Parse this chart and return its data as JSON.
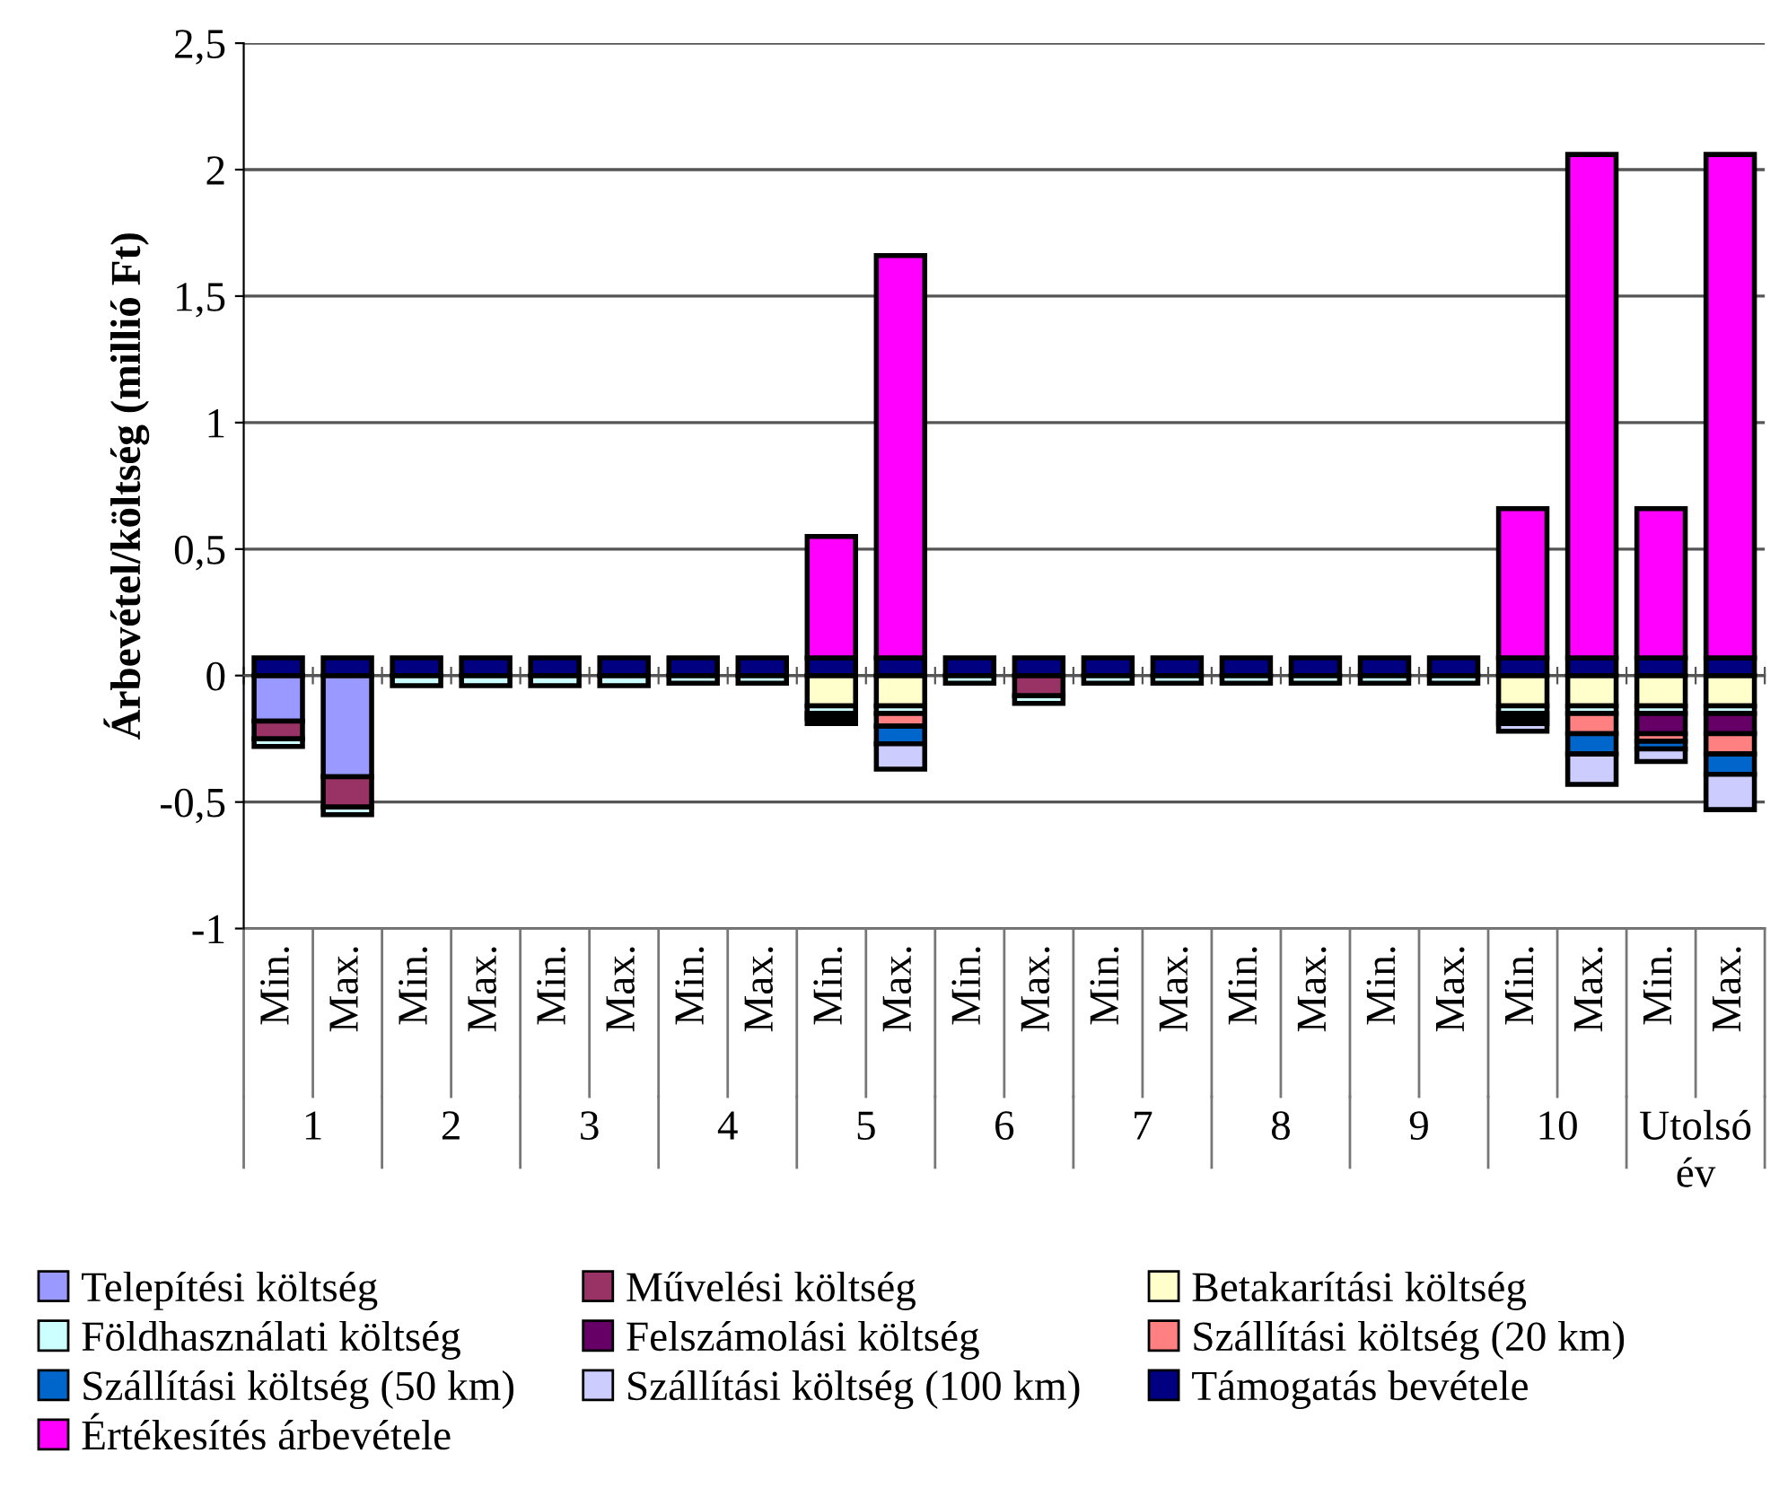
{
  "chart_data": {
    "type": "bar",
    "stacked": true,
    "ylabel": "Árbevétel/költség (millió Ft)",
    "categories": [
      "Min.",
      "Max.",
      "Min.",
      "Max.",
      "Min.",
      "Max.",
      "Min.",
      "Max.",
      "Min.",
      "Max.",
      "Min.",
      "Max.",
      "Min.",
      "Max.",
      "Min.",
      "Max.",
      "Min.",
      "Max.",
      "Min.",
      "Max.",
      "Min.",
      "Max."
    ],
    "annotations": [
      "1",
      "2",
      "3",
      "4",
      "5",
      "6",
      "7",
      "8",
      "9",
      "10",
      "Utolsó\név"
    ],
    "series": [
      {
        "name": "Telepítési költség",
        "color": "#9999ff",
        "values": [
          -0.18,
          -0.4,
          null,
          null,
          null,
          null,
          null,
          null,
          null,
          null,
          null,
          null,
          null,
          null,
          null,
          null,
          null,
          null,
          null,
          null,
          null,
          null
        ]
      },
      {
        "name": "Művelési költség",
        "color": "#993366",
        "values": [
          -0.07,
          -0.12,
          null,
          null,
          null,
          null,
          null,
          null,
          null,
          null,
          null,
          -0.08,
          null,
          null,
          null,
          null,
          null,
          null,
          null,
          null,
          null,
          null
        ]
      },
      {
        "name": "Betakarítási költség",
        "color": "#ffffcc",
        "values": [
          null,
          null,
          null,
          null,
          null,
          null,
          null,
          null,
          -0.12,
          -0.12,
          null,
          null,
          null,
          null,
          null,
          null,
          null,
          null,
          -0.12,
          -0.12,
          -0.12,
          -0.12
        ]
      },
      {
        "name": "Földhasználati költség",
        "color": "#ccffff",
        "values": [
          -0.03,
          -0.03,
          -0.04,
          -0.04,
          -0.04,
          -0.04,
          -0.03,
          -0.03,
          -0.03,
          -0.03,
          -0.03,
          -0.03,
          -0.03,
          -0.03,
          -0.03,
          -0.03,
          -0.03,
          -0.03,
          -0.03,
          -0.03,
          -0.03,
          -0.03
        ]
      },
      {
        "name": "Felszámolási költség",
        "color": "#660066",
        "values": [
          null,
          null,
          null,
          null,
          null,
          null,
          null,
          null,
          -0.02,
          null,
          null,
          null,
          null,
          null,
          null,
          null,
          null,
          null,
          -0.02,
          null,
          -0.08,
          -0.08
        ]
      },
      {
        "name": "Szállítási költség (20 km)",
        "color": "#ff8080",
        "values": [
          null,
          null,
          null,
          null,
          null,
          null,
          null,
          null,
          null,
          -0.05,
          null,
          null,
          null,
          null,
          null,
          null,
          null,
          null,
          -0.02,
          -0.08,
          -0.03,
          -0.08
        ]
      },
      {
        "name": "Szállítási költség (50 km)",
        "color": "#0066cc",
        "values": [
          null,
          null,
          null,
          null,
          null,
          null,
          null,
          null,
          null,
          -0.07,
          null,
          null,
          null,
          null,
          null,
          null,
          null,
          null,
          null,
          -0.08,
          -0.03,
          -0.08
        ]
      },
      {
        "name": "Szállítási költség (100 km)",
        "color": "#ccccff",
        "values": [
          null,
          null,
          null,
          null,
          null,
          null,
          null,
          null,
          -0.02,
          -0.1,
          null,
          null,
          null,
          null,
          null,
          null,
          null,
          null,
          -0.03,
          -0.12,
          -0.05,
          -0.14
        ]
      },
      {
        "name": "Támogatás bevétele",
        "color": "#000080",
        "values": [
          0.07,
          0.07,
          0.07,
          0.07,
          0.07,
          0.07,
          0.07,
          0.07,
          0.07,
          0.07,
          0.07,
          0.07,
          0.07,
          0.07,
          0.07,
          0.07,
          0.07,
          0.07,
          0.07,
          0.07,
          0.07,
          0.07
        ]
      },
      {
        "name": "Értékesítés árbevétele",
        "color": "#ff00ff",
        "values": [
          null,
          null,
          null,
          null,
          null,
          null,
          null,
          null,
          0.48,
          1.59,
          null,
          null,
          null,
          null,
          null,
          null,
          null,
          null,
          0.59,
          1.99,
          0.59,
          1.99
        ]
      }
    ],
    "ylim": [
      -1,
      2.5
    ],
    "yticks": [
      {
        "value": -1,
        "label": "-1"
      },
      {
        "value": -0.5,
        "label": "-0,5"
      },
      0,
      {
        "value": 0.5,
        "label": "0,5"
      },
      1,
      {
        "value": 1.5,
        "label": "1,5"
      },
      2,
      {
        "value": 2.5,
        "label": "2,5"
      }
    ],
    "grid": "y",
    "legend": "bottom"
  }
}
